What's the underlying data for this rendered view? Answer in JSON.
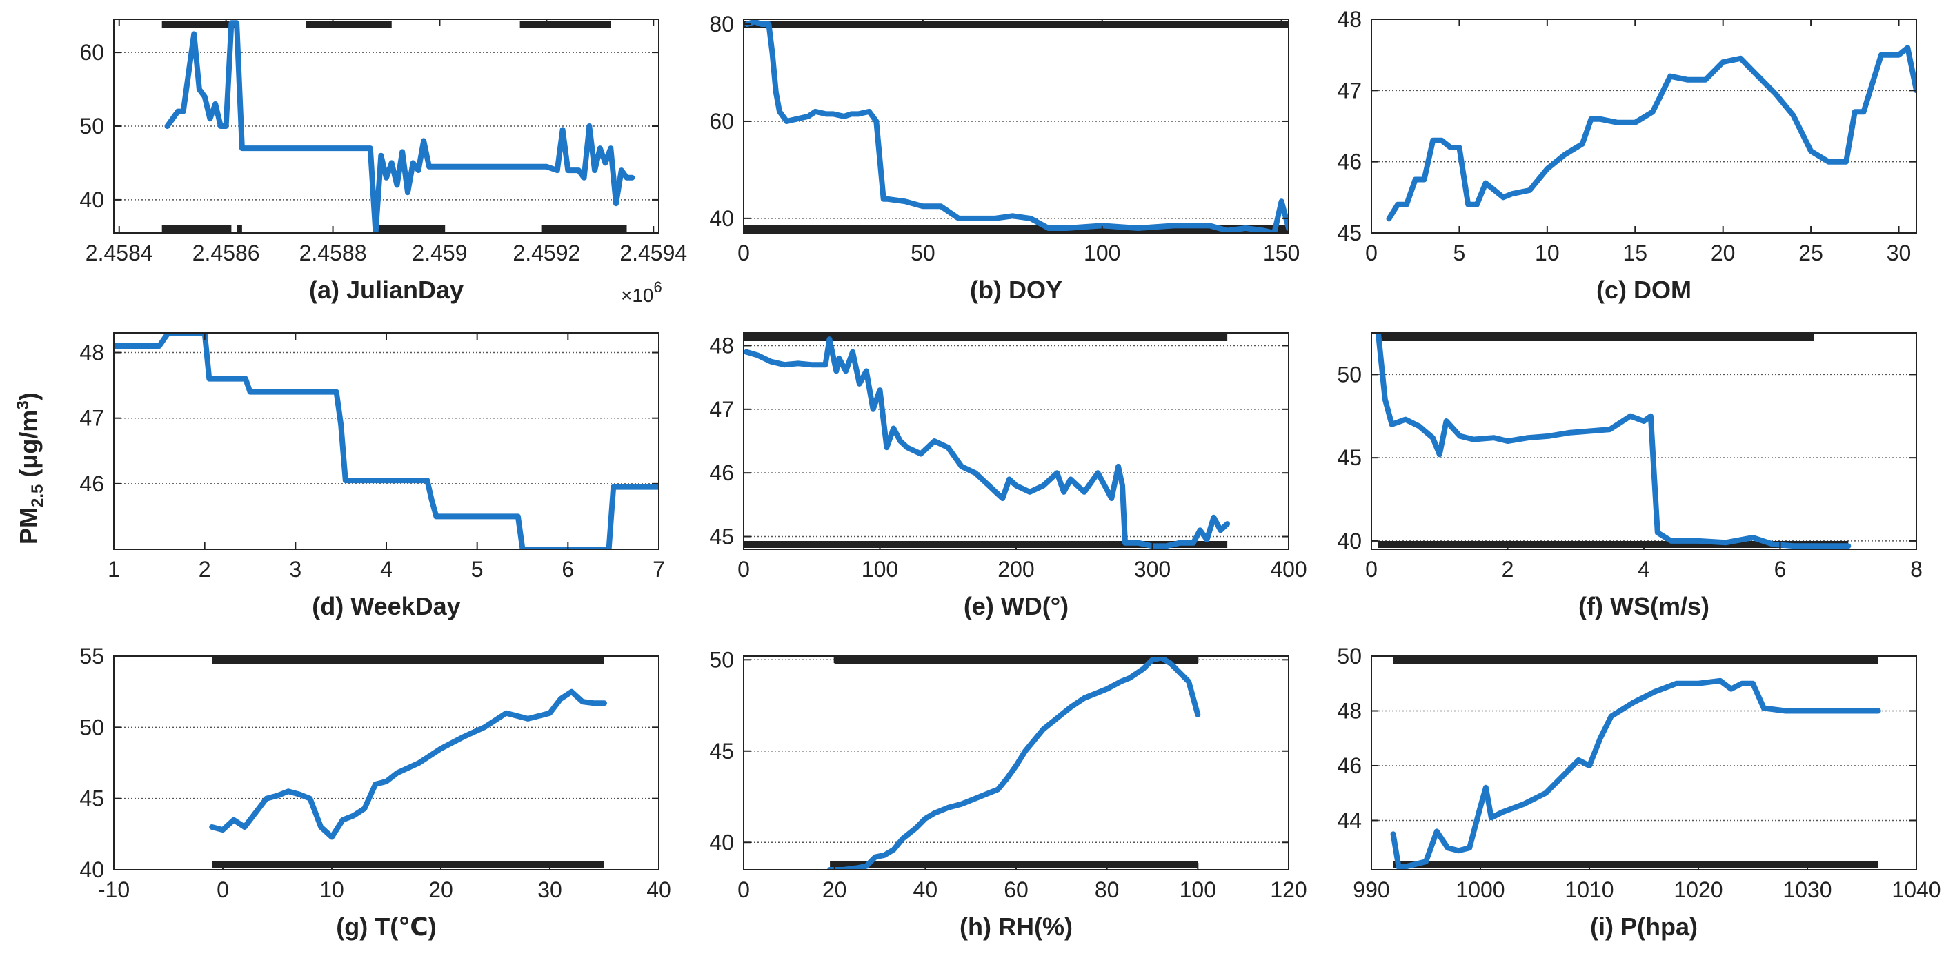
{
  "figure": {
    "ylabel_main": "PM",
    "ylabel_sub": "2.5",
    "ylabel_unit_pre": "(μg/m",
    "ylabel_unit_sup": "3",
    "ylabel_unit_post": ")",
    "line_color": "#1f77c8",
    "rug_color": "#222222"
  },
  "chart_data": [
    {
      "type": "line",
      "title": "(a) JulianDay",
      "xlabel": "(a) JulianDay",
      "exponent_label": "×10",
      "exponent_sup": "6",
      "xlim": [
        2.45839,
        2.45941
      ],
      "ylim": [
        35.5,
        64.5
      ],
      "xticks": [
        2.4584,
        2.4586,
        2.4588,
        2.459,
        2.4592,
        2.4594
      ],
      "xtick_labels": [
        "2.4584",
        "2.4586",
        "2.4588",
        "2.459",
        "2.4592",
        "2.4594"
      ],
      "yticks": [
        40,
        50,
        60
      ],
      "ytick_labels": [
        "40",
        "50",
        "60"
      ],
      "grid_y": [
        40,
        50,
        60
      ],
      "x": [
        2.45849,
        2.45851,
        2.45852,
        2.45854,
        2.45855,
        2.45856,
        2.45857,
        2.45858,
        2.45859,
        2.4586,
        2.45861,
        2.45862,
        2.45863,
        2.45865,
        2.4587,
        2.4588,
        2.45887,
        2.45888,
        2.45889,
        2.4589,
        2.45891,
        2.45892,
        2.45893,
        2.45894,
        2.45895,
        2.45896,
        2.45897,
        2.45898,
        2.459,
        2.4591,
        2.4592,
        2.45922,
        2.45923,
        2.45924,
        2.45926,
        2.45927,
        2.45928,
        2.45929,
        2.4593,
        2.45931,
        2.45932,
        2.45933,
        2.45934,
        2.45935,
        2.45936
      ],
      "y": [
        50,
        52,
        52,
        62.5,
        55,
        54,
        51,
        53,
        50,
        50,
        64,
        64,
        47,
        47,
        47,
        47,
        47,
        35.5,
        46,
        43,
        45,
        42,
        46.5,
        41,
        45,
        44,
        48,
        44.5,
        44.5,
        44.5,
        44.5,
        44,
        49.5,
        44,
        44,
        43,
        50,
        44,
        47,
        45,
        47,
        39.5,
        44,
        43,
        43
      ],
      "rug_top": [
        [
          2.45848,
          2.45862
        ],
        [
          2.45875,
          2.45891
        ],
        [
          2.45915,
          2.45932
        ]
      ],
      "rug_bottom": [
        [
          2.45848,
          2.45861
        ],
        [
          2.45862,
          2.45863
        ],
        [
          2.45888,
          2.45901
        ],
        [
          2.45919,
          2.45935
        ]
      ]
    },
    {
      "type": "line",
      "title": "(b) DOY",
      "xlabel": "(b) DOY",
      "xlim": [
        0,
        152
      ],
      "ylim": [
        37,
        81
      ],
      "xticks": [
        0,
        50,
        100,
        150
      ],
      "xtick_labels": [
        "0",
        "50",
        "100",
        "150"
      ],
      "yticks": [
        40,
        60,
        80
      ],
      "ytick_labels": [
        "40",
        "60",
        "80"
      ],
      "grid_y": [
        40,
        60,
        80
      ],
      "x": [
        1,
        3,
        5,
        7,
        8,
        9,
        10,
        12,
        15,
        18,
        20,
        23,
        25,
        28,
        30,
        32,
        35,
        37,
        38,
        39,
        40,
        45,
        50,
        55,
        60,
        70,
        75,
        80,
        85,
        90,
        100,
        110,
        120,
        130,
        135,
        140,
        145,
        148,
        150,
        152
      ],
      "y": [
        80,
        80.5,
        80,
        80,
        74,
        66,
        62,
        60,
        60.5,
        61,
        62,
        61.5,
        61.5,
        61,
        61.5,
        61.5,
        62,
        60,
        52,
        44,
        44,
        43.5,
        42.5,
        42.5,
        40,
        40,
        40.5,
        40,
        38,
        38,
        38.5,
        38,
        38.5,
        38.5,
        37.5,
        38,
        37.5,
        37,
        43.5,
        38
      ],
      "rug_top": [
        [
          0,
          152
        ]
      ],
      "rug_bottom": [
        [
          0,
          152
        ]
      ]
    },
    {
      "type": "line",
      "title": "(c) DOM",
      "xlabel": "(c) DOM",
      "xlim": [
        0,
        31
      ],
      "ylim": [
        45,
        48
      ],
      "xticks": [
        0,
        5,
        10,
        15,
        20,
        25,
        30
      ],
      "xtick_labels": [
        "0",
        "5",
        "10",
        "15",
        "20",
        "25",
        "30"
      ],
      "yticks": [
        45,
        46,
        47,
        48
      ],
      "ytick_labels": [
        "45",
        "46",
        "47",
        "48"
      ],
      "grid_y": [
        46,
        47
      ],
      "x": [
        1,
        1.5,
        2,
        2.5,
        3,
        3.5,
        4,
        4.5,
        5,
        5.5,
        6,
        6.5,
        7,
        7.5,
        8,
        9,
        10,
        11,
        12,
        12.5,
        13,
        14,
        15,
        16,
        17,
        18,
        19,
        20,
        21,
        22,
        23,
        24,
        25,
        26,
        27,
        27.5,
        28,
        29,
        30,
        30.5,
        31
      ],
      "y": [
        45.2,
        45.4,
        45.4,
        45.75,
        45.75,
        46.3,
        46.3,
        46.2,
        46.2,
        45.4,
        45.4,
        45.7,
        45.6,
        45.5,
        45.55,
        45.6,
        45.9,
        46.1,
        46.25,
        46.6,
        46.6,
        46.55,
        46.55,
        46.7,
        47.2,
        47.15,
        47.15,
        47.4,
        47.45,
        47.2,
        46.95,
        46.65,
        46.15,
        46,
        46.0,
        46.7,
        46.7,
        47.5,
        47.5,
        47.6,
        47.0
      ],
      "rug_top": [],
      "rug_bottom": []
    },
    {
      "type": "line",
      "title": "(d) WeekDay",
      "xlabel": "(d) WeekDay",
      "xlim": [
        1,
        7
      ],
      "ylim": [
        45,
        48.3
      ],
      "xticks": [
        1,
        2,
        3,
        4,
        5,
        6,
        7
      ],
      "xtick_labels": [
        "1",
        "2",
        "3",
        "4",
        "5",
        "6",
        "7"
      ],
      "yticks": [
        46,
        47,
        48
      ],
      "ytick_labels": [
        "46",
        "47",
        "48"
      ],
      "grid_y": [
        46,
        47,
        48
      ],
      "x": [
        1,
        1.5,
        1.6,
        2,
        2.05,
        2.45,
        2.5,
        3.45,
        3.5,
        3.55,
        4.45,
        4.5,
        4.55,
        5.45,
        5.5,
        6.45,
        6.5,
        7
      ],
      "y": [
        48.1,
        48.1,
        48.3,
        48.3,
        47.6,
        47.6,
        47.4,
        47.4,
        46.9,
        46.05,
        46.05,
        45.75,
        45.5,
        45.5,
        45.0,
        45.0,
        45.95,
        45.95
      ],
      "rug_top": [],
      "rug_bottom": []
    },
    {
      "type": "line",
      "title": "(e) WD(°)",
      "xlabel": "(e) WD(°)",
      "xlim": [
        0,
        400
      ],
      "ylim": [
        44.8,
        48.2
      ],
      "xticks": [
        0,
        100,
        200,
        300,
        400
      ],
      "xtick_labels": [
        "0",
        "100",
        "200",
        "300",
        "400"
      ],
      "yticks": [
        45,
        46,
        47,
        48
      ],
      "ytick_labels": [
        "45",
        "46",
        "47",
        "48"
      ],
      "grid_y": [
        45,
        46,
        47,
        48
      ],
      "x": [
        2,
        10,
        20,
        30,
        40,
        50,
        60,
        63,
        65,
        68,
        70,
        75,
        80,
        85,
        90,
        95,
        100,
        105,
        110,
        115,
        120,
        130,
        140,
        150,
        160,
        170,
        180,
        185,
        190,
        195,
        200,
        210,
        220,
        230,
        235,
        240,
        250,
        260,
        270,
        275,
        278,
        280,
        290,
        300,
        310,
        320,
        330,
        335,
        340,
        345,
        350,
        355
      ],
      "y": [
        47.9,
        47.85,
        47.75,
        47.7,
        47.72,
        47.7,
        47.7,
        48.1,
        47.9,
        47.6,
        47.8,
        47.6,
        47.9,
        47.4,
        47.6,
        47.0,
        47.3,
        46.4,
        46.7,
        46.5,
        46.4,
        46.3,
        46.5,
        46.4,
        46.1,
        46.0,
        45.8,
        45.7,
        45.6,
        45.9,
        45.8,
        45.7,
        45.8,
        46.0,
        45.7,
        45.9,
        45.7,
        46.0,
        45.6,
        46.1,
        45.8,
        44.9,
        44.9,
        44.85,
        44.85,
        44.9,
        44.9,
        45.1,
        44.95,
        45.3,
        45.1,
        45.2
      ],
      "rug_top": [
        [
          0,
          355
        ]
      ],
      "rug_bottom": [
        [
          0,
          355
        ]
      ]
    },
    {
      "type": "line",
      "title": "(f) WS(m/s)",
      "xlabel": "(f) WS(m/s)",
      "xlim": [
        0,
        8
      ],
      "ylim": [
        39.5,
        52.5
      ],
      "xticks": [
        0,
        2,
        4,
        6,
        8
      ],
      "xtick_labels": [
        "0",
        "2",
        "4",
        "6",
        "8"
      ],
      "yticks": [
        40,
        45,
        50
      ],
      "ytick_labels": [
        "40",
        "45",
        "50"
      ],
      "grid_y": [
        40,
        45,
        50
      ],
      "x": [
        0.1,
        0.2,
        0.3,
        0.5,
        0.7,
        0.9,
        1.0,
        1.1,
        1.3,
        1.5,
        1.8,
        2.0,
        2.3,
        2.6,
        2.9,
        3.2,
        3.5,
        3.8,
        4.0,
        4.1,
        4.15,
        4.2,
        4.4,
        4.8,
        5.2,
        5.6,
        5.9,
        6.2,
        7.0
      ],
      "y": [
        52.5,
        48.5,
        47.0,
        47.3,
        46.9,
        46.2,
        45.2,
        47.2,
        46.3,
        46.1,
        46.2,
        46.0,
        46.2,
        46.3,
        46.5,
        46.6,
        46.7,
        47.5,
        47.2,
        47.5,
        44.0,
        40.5,
        40.0,
        40.0,
        39.9,
        40.2,
        39.8,
        39.7,
        39.7
      ],
      "rug_top": [
        [
          0.1,
          6.5
        ]
      ],
      "rug_bottom": [
        [
          0.1,
          7.0
        ]
      ]
    },
    {
      "type": "line",
      "title": "(g) T(℃)",
      "xlabel": "(g) T(℃)",
      "xlim": [
        -10,
        40
      ],
      "ylim": [
        40,
        55
      ],
      "xticks": [
        -10,
        0,
        10,
        20,
        30,
        40
      ],
      "xtick_labels": [
        "-10",
        "0",
        "10",
        "20",
        "30",
        "40"
      ],
      "yticks": [
        40,
        45,
        50,
        55
      ],
      "ytick_labels": [
        "40",
        "45",
        "50",
        "55"
      ],
      "grid_y": [
        45,
        50
      ],
      "x": [
        -1,
        0,
        1,
        2,
        3,
        4,
        5,
        6,
        7,
        8,
        9,
        10,
        11,
        12,
        13,
        14,
        15,
        16,
        18,
        20,
        22,
        24,
        26,
        28,
        30,
        31,
        32,
        33,
        34,
        35
      ],
      "y": [
        43,
        42.8,
        43.5,
        43.0,
        44.0,
        45.0,
        45.2,
        45.5,
        45.3,
        45.0,
        43.0,
        42.3,
        43.5,
        43.8,
        44.3,
        46.0,
        46.2,
        46.8,
        47.5,
        48.5,
        49.3,
        50.0,
        51.0,
        50.6,
        51.0,
        52.0,
        52.5,
        51.8,
        51.7,
        51.7
      ],
      "rug_top": [
        [
          -1,
          35
        ]
      ],
      "rug_bottom": [
        [
          -1,
          35
        ]
      ]
    },
    {
      "type": "line",
      "title": "(h) RH(%)",
      "xlabel": "(h) RH(%)",
      "xlim": [
        0,
        120
      ],
      "ylim": [
        38.5,
        50.2
      ],
      "xticks": [
        0,
        20,
        40,
        60,
        80,
        100,
        120
      ],
      "xtick_labels": [
        "0",
        "20",
        "40",
        "60",
        "80",
        "100",
        "120"
      ],
      "yticks": [
        40,
        45,
        50
      ],
      "ytick_labels": [
        "40",
        "45",
        "50"
      ],
      "grid_y": [
        40,
        45,
        50
      ],
      "x": [
        19,
        22,
        25,
        27,
        29,
        31,
        33,
        35,
        38,
        40,
        42,
        45,
        48,
        50,
        53,
        56,
        58,
        60,
        62,
        64,
        66,
        68,
        70,
        72,
        75,
        78,
        80,
        83,
        85,
        88,
        90,
        92,
        94,
        96,
        98,
        100
      ],
      "y": [
        38.5,
        38.5,
        38.6,
        38.7,
        39.2,
        39.3,
        39.6,
        40.2,
        40.8,
        41.3,
        41.6,
        41.9,
        42.1,
        42.3,
        42.6,
        42.9,
        43.5,
        44.2,
        45.0,
        45.6,
        46.2,
        46.6,
        47.0,
        47.4,
        47.9,
        48.2,
        48.4,
        48.8,
        49.0,
        49.5,
        50.0,
        50.1,
        49.8,
        49.3,
        48.8,
        47.0
      ],
      "rug_top": [
        [
          20,
          100
        ]
      ],
      "rug_bottom": [
        [
          19,
          100
        ]
      ]
    },
    {
      "type": "line",
      "title": "(i) P(hpa)",
      "xlabel": "(i) P(hpa)",
      "xlim": [
        990,
        1040
      ],
      "ylim": [
        42.2,
        50
      ],
      "xticks": [
        990,
        1000,
        1010,
        1020,
        1030,
        1040
      ],
      "xtick_labels": [
        "990",
        "1000",
        "1010",
        "1020",
        "1030",
        "1040"
      ],
      "yticks": [
        44,
        46,
        48,
        50
      ],
      "ytick_labels": [
        "44",
        "46",
        "48",
        "50"
      ],
      "grid_y": [
        44,
        46,
        48
      ],
      "x": [
        992,
        992.5,
        993,
        994,
        995,
        996,
        997,
        998,
        999,
        1000,
        1000.5,
        1001,
        1002,
        1004,
        1006,
        1008,
        1009,
        1010,
        1011,
        1012,
        1014,
        1016,
        1018,
        1020,
        1022,
        1023,
        1024,
        1025,
        1026,
        1028,
        1030,
        1032,
        1034,
        1036.5
      ],
      "y": [
        43.5,
        42.3,
        42.3,
        42.4,
        42.5,
        43.6,
        43.0,
        42.9,
        43.0,
        44.5,
        45.2,
        44.1,
        44.3,
        44.6,
        45.0,
        45.8,
        46.2,
        46.0,
        47.0,
        47.8,
        48.3,
        48.7,
        49.0,
        49.0,
        49.1,
        48.8,
        49.0,
        49.0,
        48.1,
        48.0,
        48.0,
        48.0,
        48.0,
        48.0
      ],
      "rug_top": [
        [
          992,
          1036.5
        ]
      ],
      "rug_bottom": [
        [
          992,
          1036.5
        ]
      ]
    }
  ]
}
